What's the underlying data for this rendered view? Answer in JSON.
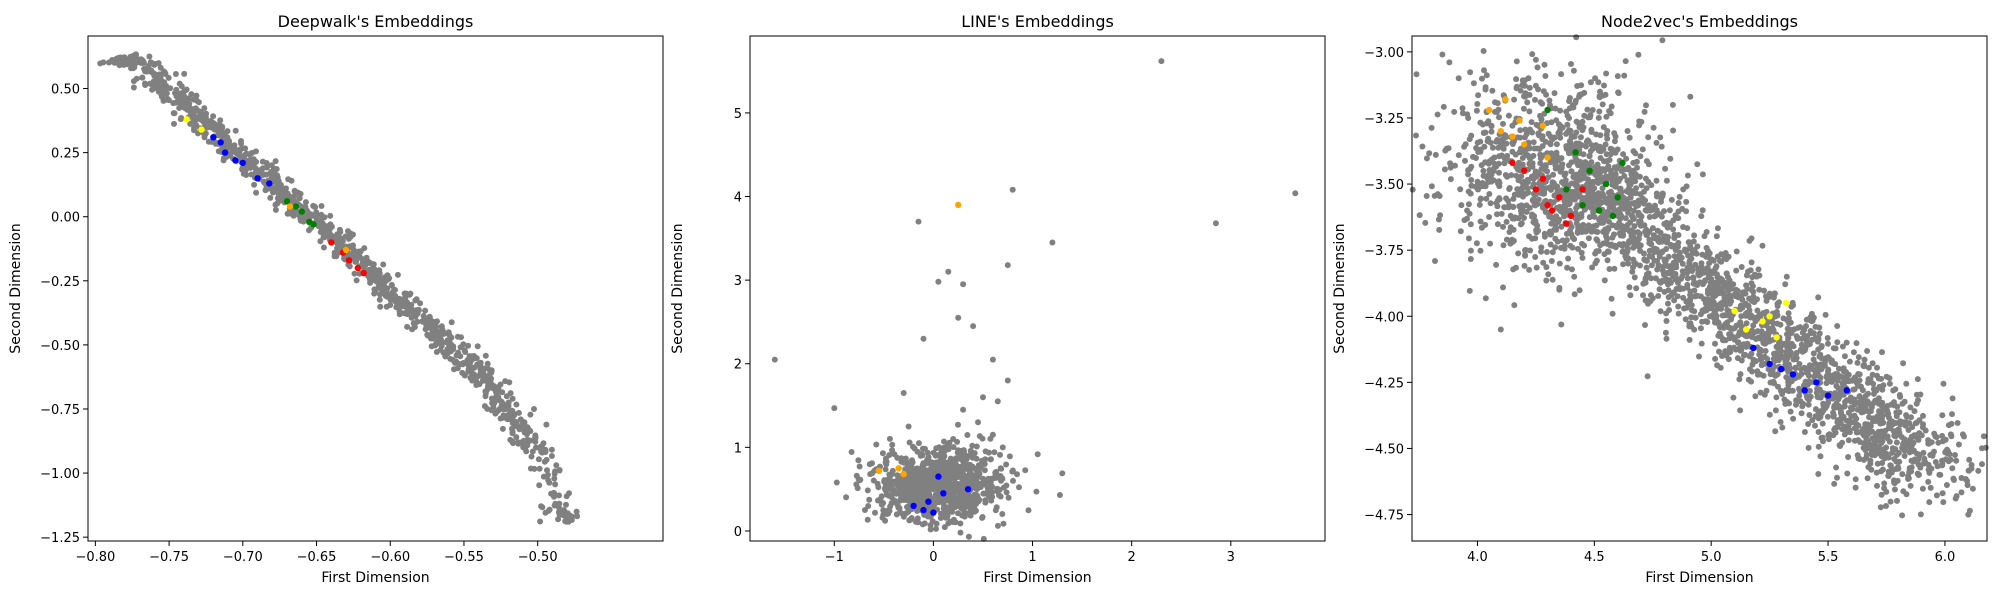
{
  "figure": {
    "background": "#ffffff"
  },
  "chart_data": [
    {
      "type": "scatter",
      "title": "Deepwalk's Embeddings",
      "xlabel": "First Dimension",
      "ylabel": "Second Dimension",
      "xlim": [
        -0.805,
        -0.415
      ],
      "ylim": [
        -1.265,
        0.705
      ],
      "xticks": [
        -0.8,
        -0.75,
        -0.7,
        -0.65,
        -0.6,
        -0.55,
        -0.5
      ],
      "xtick_labels": [
        "−0.80",
        "−0.75",
        "−0.70",
        "−0.65",
        "−0.60",
        "−0.55",
        "−0.50"
      ],
      "yticks": [
        -1.25,
        -1.0,
        -0.75,
        -0.5,
        -0.25,
        0.0,
        0.25,
        0.5
      ],
      "ytick_labels": [
        "−1.25",
        "−1.00",
        "−0.75",
        "−0.50",
        "−0.25",
        "0.00",
        "0.25",
        "0.50"
      ],
      "grid": false,
      "series": [
        {
          "color": "#808080",
          "role": "background",
          "points": [
            [
              -0.784,
              0.62
            ],
            [
              -0.779,
              0.61
            ],
            [
              -0.768,
              0.6
            ],
            [
              -0.76,
              0.55
            ],
            [
              -0.752,
              0.51
            ],
            [
              -0.745,
              0.47
            ],
            [
              -0.738,
              0.43
            ],
            [
              -0.73,
              0.39
            ],
            [
              -0.722,
              0.35
            ],
            [
              -0.714,
              0.3
            ],
            [
              -0.706,
              0.26
            ],
            [
              -0.698,
              0.22
            ],
            [
              -0.69,
              0.18
            ],
            [
              -0.682,
              0.14
            ],
            [
              -0.674,
              0.1
            ],
            [
              -0.666,
              0.06
            ],
            [
              -0.658,
              0.02
            ],
            [
              -0.65,
              -0.02
            ],
            [
              -0.642,
              -0.07
            ],
            [
              -0.634,
              -0.11
            ],
            [
              -0.626,
              -0.15
            ],
            [
              -0.618,
              -0.2
            ],
            [
              -0.61,
              -0.24
            ],
            [
              -0.602,
              -0.28
            ],
            [
              -0.594,
              -0.32
            ],
            [
              -0.586,
              -0.36
            ],
            [
              -0.578,
              -0.41
            ],
            [
              -0.57,
              -0.45
            ],
            [
              -0.562,
              -0.49
            ],
            [
              -0.554,
              -0.53
            ],
            [
              -0.546,
              -0.58
            ],
            [
              -0.538,
              -0.62
            ],
            [
              -0.53,
              -0.67
            ],
            [
              -0.522,
              -0.74
            ],
            [
              -0.515,
              -0.8
            ],
            [
              -0.507,
              -0.87
            ],
            [
              -0.497,
              -0.92
            ],
            [
              -0.488,
              -1.12
            ],
            [
              -0.479,
              -1.19
            ]
          ]
        },
        {
          "color": "#0000ff",
          "points": [
            [
              -0.715,
              0.29
            ],
            [
              -0.712,
              0.25
            ],
            [
              -0.705,
              0.22
            ],
            [
              -0.7,
              0.21
            ],
            [
              -0.69,
              0.15
            ],
            [
              -0.682,
              0.13
            ],
            [
              -0.72,
              0.31
            ]
          ]
        },
        {
          "color": "#008000",
          "points": [
            [
              -0.67,
              0.06
            ],
            [
              -0.664,
              0.04
            ],
            [
              -0.655,
              -0.02
            ],
            [
              -0.652,
              -0.03
            ],
            [
              -0.66,
              0.02
            ]
          ]
        },
        {
          "color": "#ff0000",
          "points": [
            [
              -0.64,
              -0.1
            ],
            [
              -0.632,
              -0.14
            ],
            [
              -0.628,
              -0.17
            ],
            [
              -0.622,
              -0.2
            ],
            [
              -0.618,
              -0.22
            ]
          ]
        },
        {
          "color": "#ffff00",
          "points": [
            [
              -0.738,
              0.38
            ],
            [
              -0.728,
              0.34
            ]
          ]
        },
        {
          "color": "#ffa500",
          "points": [
            [
              -0.668,
              0.04
            ],
            [
              -0.63,
              -0.13
            ]
          ]
        }
      ]
    },
    {
      "type": "scatter",
      "title": "LINE's Embeddings",
      "xlabel": "First Dimension",
      "ylabel": "Second Dimension",
      "xlim": [
        -1.85,
        3.95
      ],
      "ylim": [
        -0.12,
        5.92
      ],
      "xticks": [
        -1,
        0,
        1,
        2,
        3
      ],
      "xtick_labels": [
        "−1",
        "0",
        "1",
        "2",
        "3"
      ],
      "yticks": [
        0,
        1,
        2,
        3,
        4,
        5
      ],
      "ytick_labels": [
        "0",
        "1",
        "2",
        "3",
        "4",
        "5"
      ],
      "grid": false,
      "series": [
        {
          "color": "#808080",
          "role": "background",
          "points": [
            [
              -1.6,
              2.05
            ],
            [
              -1.0,
              1.47
            ],
            [
              0.8,
              4.08
            ],
            [
              2.3,
              5.62
            ],
            [
              3.65,
              4.04
            ],
            [
              2.85,
              3.68
            ],
            [
              1.2,
              3.45
            ],
            [
              -0.15,
              3.7
            ],
            [
              0.75,
              3.18
            ],
            [
              0.05,
              2.98
            ],
            [
              0.15,
              3.1
            ],
            [
              0.3,
              2.95
            ],
            [
              0.25,
              2.55
            ],
            [
              0.4,
              2.45
            ],
            [
              -0.1,
              2.3
            ],
            [
              0.6,
              2.05
            ],
            [
              0.75,
              1.8
            ],
            [
              0.5,
              1.6
            ],
            [
              0.65,
              1.55
            ],
            [
              0.3,
              1.45
            ],
            [
              -0.3,
              1.65
            ],
            [
              0.45,
              1.3
            ],
            [
              0.6,
              1.15
            ],
            [
              0.7,
              1.0
            ],
            [
              -0.25,
              1.25
            ],
            [
              0.2,
              1.1
            ]
          ]
        },
        {
          "color": "#0000ff",
          "points": [
            [
              -0.2,
              0.3
            ],
            [
              -0.1,
              0.25
            ],
            [
              0.0,
              0.22
            ],
            [
              0.1,
              0.45
            ],
            [
              0.05,
              0.65
            ],
            [
              0.35,
              0.5
            ],
            [
              -0.05,
              0.35
            ]
          ]
        },
        {
          "color": "#ffa500",
          "points": [
            [
              0.25,
              3.9
            ],
            [
              -0.55,
              0.72
            ],
            [
              -0.35,
              0.75
            ],
            [
              -0.3,
              0.68
            ]
          ]
        }
      ],
      "clusters": [
        {
          "color": "#808080",
          "center": [
            0.05,
            0.55
          ],
          "spread": [
            0.33,
            0.22
          ]
        }
      ]
    },
    {
      "type": "scatter",
      "title": "Node2vec's Embeddings",
      "xlabel": "First Dimension",
      "ylabel": "Second Dimension",
      "xlim": [
        3.72,
        6.18
      ],
      "ylim": [
        -4.85,
        -2.94
      ],
      "xticks": [
        4.0,
        4.5,
        5.0,
        5.5,
        6.0
      ],
      "xtick_labels": [
        "4.0",
        "4.5",
        "5.0",
        "5.5",
        "6.0"
      ],
      "yticks": [
        -4.75,
        -4.5,
        -4.25,
        -4.0,
        -3.75,
        -3.5,
        -3.25,
        -3.0
      ],
      "ytick_labels": [
        "−4.75",
        "−4.50",
        "−4.25",
        "−4.00",
        "−3.75",
        "−3.50",
        "−3.25",
        "−3.00"
      ],
      "grid": false,
      "series": [
        {
          "color": "#808080",
          "role": "background",
          "points": [
            [
              3.85,
              -3.01
            ],
            [
              3.88,
              -3.04
            ],
            [
              3.92,
              -3.1
            ],
            [
              4.25,
              -3.03
            ],
            [
              4.1,
              -4.05
            ],
            [
              4.35,
              -3.9
            ],
            [
              4.6,
              -3.62
            ],
            [
              6.1,
              -4.75
            ],
            [
              6.05,
              -4.68
            ],
            [
              5.98,
              -4.6
            ]
          ]
        },
        {
          "color": "#ffa500",
          "points": [
            [
              4.05,
              -3.22
            ],
            [
              4.12,
              -3.18
            ],
            [
              4.18,
              -3.26
            ],
            [
              4.2,
              -3.35
            ],
            [
              4.3,
              -3.4
            ],
            [
              4.15,
              -3.32
            ],
            [
              4.28,
              -3.28
            ],
            [
              4.1,
              -3.3
            ]
          ]
        },
        {
          "color": "#008000",
          "points": [
            [
              4.3,
              -3.22
            ],
            [
              4.42,
              -3.38
            ],
            [
              4.48,
              -3.45
            ],
            [
              4.55,
              -3.5
            ],
            [
              4.6,
              -3.55
            ],
            [
              4.52,
              -3.6
            ],
            [
              4.38,
              -3.52
            ],
            [
              4.62,
              -3.42
            ],
            [
              4.45,
              -3.58
            ],
            [
              4.58,
              -3.62
            ]
          ]
        },
        {
          "color": "#ff0000",
          "points": [
            [
              4.2,
              -3.45
            ],
            [
              4.25,
              -3.52
            ],
            [
              4.3,
              -3.58
            ],
            [
              4.35,
              -3.55
            ],
            [
              4.4,
              -3.62
            ],
            [
              4.28,
              -3.48
            ],
            [
              4.32,
              -3.6
            ],
            [
              4.45,
              -3.52
            ],
            [
              4.15,
              -3.42
            ],
            [
              4.38,
              -3.65
            ]
          ]
        },
        {
          "color": "#ffff00",
          "points": [
            [
              5.1,
              -3.98
            ],
            [
              5.15,
              -4.05
            ],
            [
              5.22,
              -4.02
            ],
            [
              5.28,
              -4.08
            ],
            [
              5.32,
              -3.95
            ],
            [
              5.25,
              -4.0
            ]
          ]
        },
        {
          "color": "#0000ff",
          "points": [
            [
              5.18,
              -4.12
            ],
            [
              5.25,
              -4.18
            ],
            [
              5.35,
              -4.22
            ],
            [
              5.4,
              -4.28
            ],
            [
              5.5,
              -4.3
            ],
            [
              5.58,
              -4.28
            ],
            [
              5.45,
              -4.25
            ],
            [
              5.3,
              -4.2
            ]
          ]
        }
      ],
      "clusters": [
        {
          "color": "#808080",
          "center": [
            4.3,
            -3.45
          ],
          "spread": [
            0.22,
            0.18
          ]
        }
      ],
      "bands": [
        {
          "color": "#808080",
          "from": [
            4.45,
            -3.5
          ],
          "to": [
            5.95,
            -4.6
          ],
          "width": 0.12
        }
      ]
    }
  ]
}
